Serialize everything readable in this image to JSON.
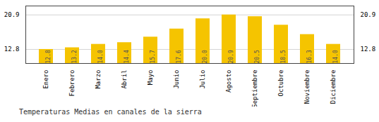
{
  "chart_data": {
    "type": "bar",
    "title": "Temperaturas Medias en canales de la sierra",
    "categories": [
      "Enero",
      "Febrero",
      "Marzo",
      "Abril",
      "Mayo",
      "Junio",
      "Julio",
      "Agosto",
      "Septiembre",
      "Octubre",
      "Noviembre",
      "Diciembre"
    ],
    "values": [
      12.8,
      13.2,
      14.0,
      14.4,
      15.7,
      17.6,
      20.0,
      20.9,
      20.5,
      18.5,
      16.3,
      14.0
    ],
    "value_labels": [
      "12.8",
      "13.2",
      "14.0",
      "14.4",
      "15.7",
      "17.6",
      "20.0",
      "20.9",
      "20.5",
      "18.5",
      "16.3",
      "14.0"
    ],
    "color": "#F5C400",
    "ylim": [
      9.5,
      23.0
    ],
    "yticks": [
      12.8,
      20.9
    ],
    "grid": true,
    "data_labels": true
  }
}
